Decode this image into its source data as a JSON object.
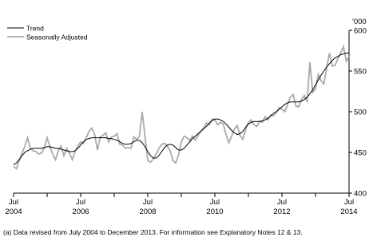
{
  "chart_data": {
    "type": "line",
    "x": [
      "2004-07",
      "2004-08",
      "2004-09",
      "2004-10",
      "2004-11",
      "2004-12",
      "2005-01",
      "2005-02",
      "2005-03",
      "2005-04",
      "2005-05",
      "2005-06",
      "2005-07",
      "2005-08",
      "2005-09",
      "2005-10",
      "2005-11",
      "2005-12",
      "2006-01",
      "2006-02",
      "2006-03",
      "2006-04",
      "2006-05",
      "2006-06",
      "2006-07",
      "2006-08",
      "2006-09",
      "2006-10",
      "2006-11",
      "2006-12",
      "2007-01",
      "2007-02",
      "2007-03",
      "2007-04",
      "2007-05",
      "2007-06",
      "2007-07",
      "2007-08",
      "2007-09",
      "2007-10",
      "2007-11",
      "2007-12",
      "2008-01",
      "2008-02",
      "2008-03",
      "2008-04",
      "2008-05",
      "2008-06",
      "2008-07",
      "2008-08",
      "2008-09",
      "2008-10",
      "2008-11",
      "2008-12",
      "2009-01",
      "2009-02",
      "2009-03",
      "2009-04",
      "2009-05",
      "2009-06",
      "2009-07",
      "2009-08",
      "2009-09",
      "2009-10",
      "2009-11",
      "2009-12",
      "2010-01",
      "2010-02",
      "2010-03",
      "2010-04",
      "2010-05",
      "2010-06",
      "2010-07",
      "2010-08",
      "2010-09",
      "2010-10",
      "2010-11",
      "2010-12",
      "2011-01",
      "2011-02",
      "2011-03",
      "2011-04",
      "2011-05",
      "2011-06",
      "2011-07",
      "2011-08",
      "2011-09",
      "2011-10",
      "2011-11",
      "2011-12",
      "2012-01",
      "2012-02",
      "2012-03",
      "2012-04",
      "2012-05",
      "2012-06",
      "2012-07",
      "2012-08",
      "2012-09",
      "2012-10",
      "2012-11",
      "2012-12",
      "2013-01",
      "2013-02",
      "2013-03",
      "2013-04",
      "2013-05",
      "2013-06",
      "2013-07",
      "2013-08",
      "2013-09",
      "2013-10",
      "2013-11",
      "2013-12",
      "2014-01",
      "2014-02",
      "2014-03",
      "2014-04",
      "2014-05",
      "2014-06",
      "2014-07"
    ],
    "series": [
      {
        "name": "Trend",
        "color": "#000000",
        "values": [
          435,
          437,
          441,
          446,
          450,
          452,
          454,
          455,
          455,
          455,
          455,
          456,
          457,
          457,
          456,
          455,
          455,
          454,
          453,
          452,
          451,
          451,
          452,
          455,
          459,
          463,
          466,
          467,
          468,
          468,
          468,
          468,
          468,
          468,
          467,
          467,
          466,
          465,
          463,
          461,
          460,
          460,
          461,
          463,
          465,
          465,
          462,
          457,
          451,
          446,
          443,
          443,
          446,
          451,
          456,
          459,
          460,
          459,
          456,
          453,
          453,
          455,
          459,
          463,
          467,
          470,
          473,
          476,
          479,
          482,
          486,
          489,
          491,
          491,
          490,
          488,
          485,
          481,
          477,
          474,
          472,
          473,
          476,
          481,
          485,
          487,
          488,
          488,
          488,
          489,
          490,
          492,
          495,
          498,
          500,
          503,
          506,
          509,
          511,
          512,
          512,
          512,
          512,
          513,
          515,
          518,
          522,
          527,
          533,
          539,
          545,
          550,
          555,
          559,
          563,
          566,
          568,
          570,
          571,
          572,
          572
        ]
      },
      {
        "name": "Seasonally Adjusted",
        "color": "#aaaaaa",
        "values": [
          433,
          430,
          440,
          449,
          457,
          468,
          455,
          452,
          451,
          448,
          449,
          456,
          468,
          457,
          448,
          441,
          452,
          458,
          446,
          455,
          449,
          441,
          451,
          458,
          463,
          461,
          468,
          476,
          480,
          472,
          453,
          469,
          471,
          474,
          463,
          469,
          470,
          473,
          460,
          459,
          455,
          456,
          455,
          469,
          466,
          470,
          500,
          470,
          440,
          438,
          442,
          448,
          455,
          460,
          461,
          458,
          452,
          440,
          437,
          447,
          463,
          470,
          468,
          465,
          470,
          465,
          471,
          476,
          480,
          486,
          484,
          491,
          490,
          484,
          487,
          485,
          472,
          462,
          470,
          479,
          483,
          471,
          466,
          478,
          487,
          490,
          484,
          482,
          488,
          487,
          494,
          490,
          496,
          495,
          499,
          505,
          503,
          500,
          509,
          518,
          521,
          507,
          506,
          515,
          520,
          513,
          561,
          524,
          528,
          546,
          538,
          534,
          554,
          572,
          556,
          557,
          565,
          572,
          580,
          562,
          568
        ]
      }
    ],
    "xlim": [
      "2004-07",
      "2014-07"
    ],
    "xticks": [
      {
        "value": "2004-07",
        "label": "Jul 2004"
      },
      {
        "value": "2006-07",
        "label": "Jul 2006"
      },
      {
        "value": "2008-07",
        "label": "Jul 2008"
      },
      {
        "value": "2010-07",
        "label": "Jul 2010"
      },
      {
        "value": "2012-07",
        "label": "Jul 2012"
      },
      {
        "value": "2014-07",
        "label": "Jul 2014"
      }
    ],
    "xminorticks": [
      "2005-07",
      "2007-07",
      "2009-07",
      "2011-07",
      "2013-07"
    ],
    "ylim": [
      400,
      600
    ],
    "yticks": [
      400,
      450,
      500,
      550,
      600
    ],
    "y_unit": "'000",
    "legend": "top-left",
    "footnote": "(a) Data revised from July 2004 to December 2013. For information see Explanatory Notes 12 & 13."
  }
}
